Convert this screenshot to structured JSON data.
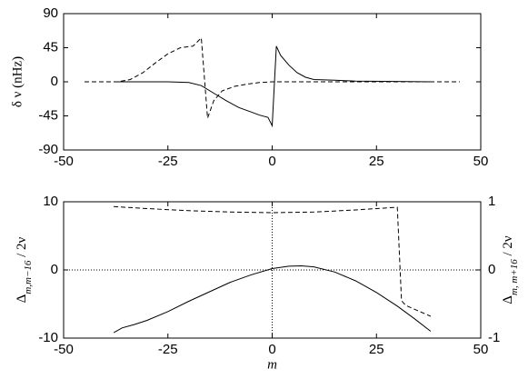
{
  "chart_data": [
    {
      "type": "line",
      "ylabel": "δ ν (nHz)",
      "xlim": [
        -50,
        50
      ],
      "xticks": [
        -50,
        -25,
        0,
        25,
        50
      ],
      "ylim": [
        -90,
        90
      ],
      "yticks": [
        -90,
        -45,
        0,
        45,
        90
      ],
      "series": [
        {
          "color": "#000",
          "dash": "solid",
          "x": [
            -37,
            -25,
            -20,
            -17,
            -14,
            -11,
            -8,
            -5,
            -3,
            -1,
            0,
            1,
            2,
            4,
            6,
            8,
            10,
            15,
            20,
            30,
            38
          ],
          "values": [
            0,
            0,
            -1,
            -5,
            -15,
            -25,
            -34,
            -40,
            -44,
            -47,
            -58,
            47,
            35,
            22,
            12,
            6,
            3,
            2,
            1,
            0.5,
            0
          ]
        },
        {
          "color": "#000",
          "dash": "dashed",
          "x": [
            -45,
            -37,
            -34,
            -31,
            -28,
            -25,
            -22,
            -19,
            -17,
            -15.5,
            -14,
            -12,
            -9,
            -6,
            -3,
            0,
            10,
            45
          ],
          "values": [
            0,
            0,
            3,
            12,
            25,
            37,
            45,
            47,
            58,
            -48,
            -25,
            -12,
            -6,
            -3,
            -1,
            0,
            0,
            0
          ]
        }
      ]
    },
    {
      "type": "line",
      "xlabel": "m",
      "ylabel": {
        "base": "Δ",
        "sub": "m,m−16",
        "rest": "/ 2ν"
      },
      "y2label": {
        "base": "Δ",
        "sub": "m, m+16",
        "rest": "/ 2ν"
      },
      "xlim": [
        -50,
        50
      ],
      "xticks": [
        -50,
        -25,
        0,
        25,
        50
      ],
      "ylim": [
        -10,
        10
      ],
      "yticks": [
        -10,
        0,
        10
      ],
      "y2lim": [
        -1,
        1
      ],
      "y2ticks": [
        -1,
        0,
        1
      ],
      "zero_lines": true,
      "series": [
        {
          "color": "#000",
          "dash": "solid",
          "x": [
            -38,
            -36,
            -33,
            -30,
            -25,
            -20,
            -15,
            -10,
            -5,
            0,
            4,
            7,
            10,
            15,
            20,
            25,
            30,
            34,
            38
          ],
          "values": [
            -9.2,
            -8.5,
            -8,
            -7.4,
            -6.1,
            -4.6,
            -3.2,
            -1.8,
            -0.7,
            0.2,
            0.55,
            0.6,
            0.45,
            -0.3,
            -1.6,
            -3.3,
            -5.3,
            -7.1,
            -9
          ]
        },
        {
          "color": "#000",
          "dash": "dashed",
          "axis": "y2",
          "x": [
            -38,
            -30,
            -20,
            -10,
            0,
            10,
            20,
            30,
            31,
            32,
            35,
            38
          ],
          "values": [
            0.93,
            0.9,
            0.87,
            0.85,
            0.84,
            0.85,
            0.88,
            0.92,
            -0.45,
            -0.52,
            -0.6,
            -0.68
          ]
        }
      ]
    }
  ]
}
